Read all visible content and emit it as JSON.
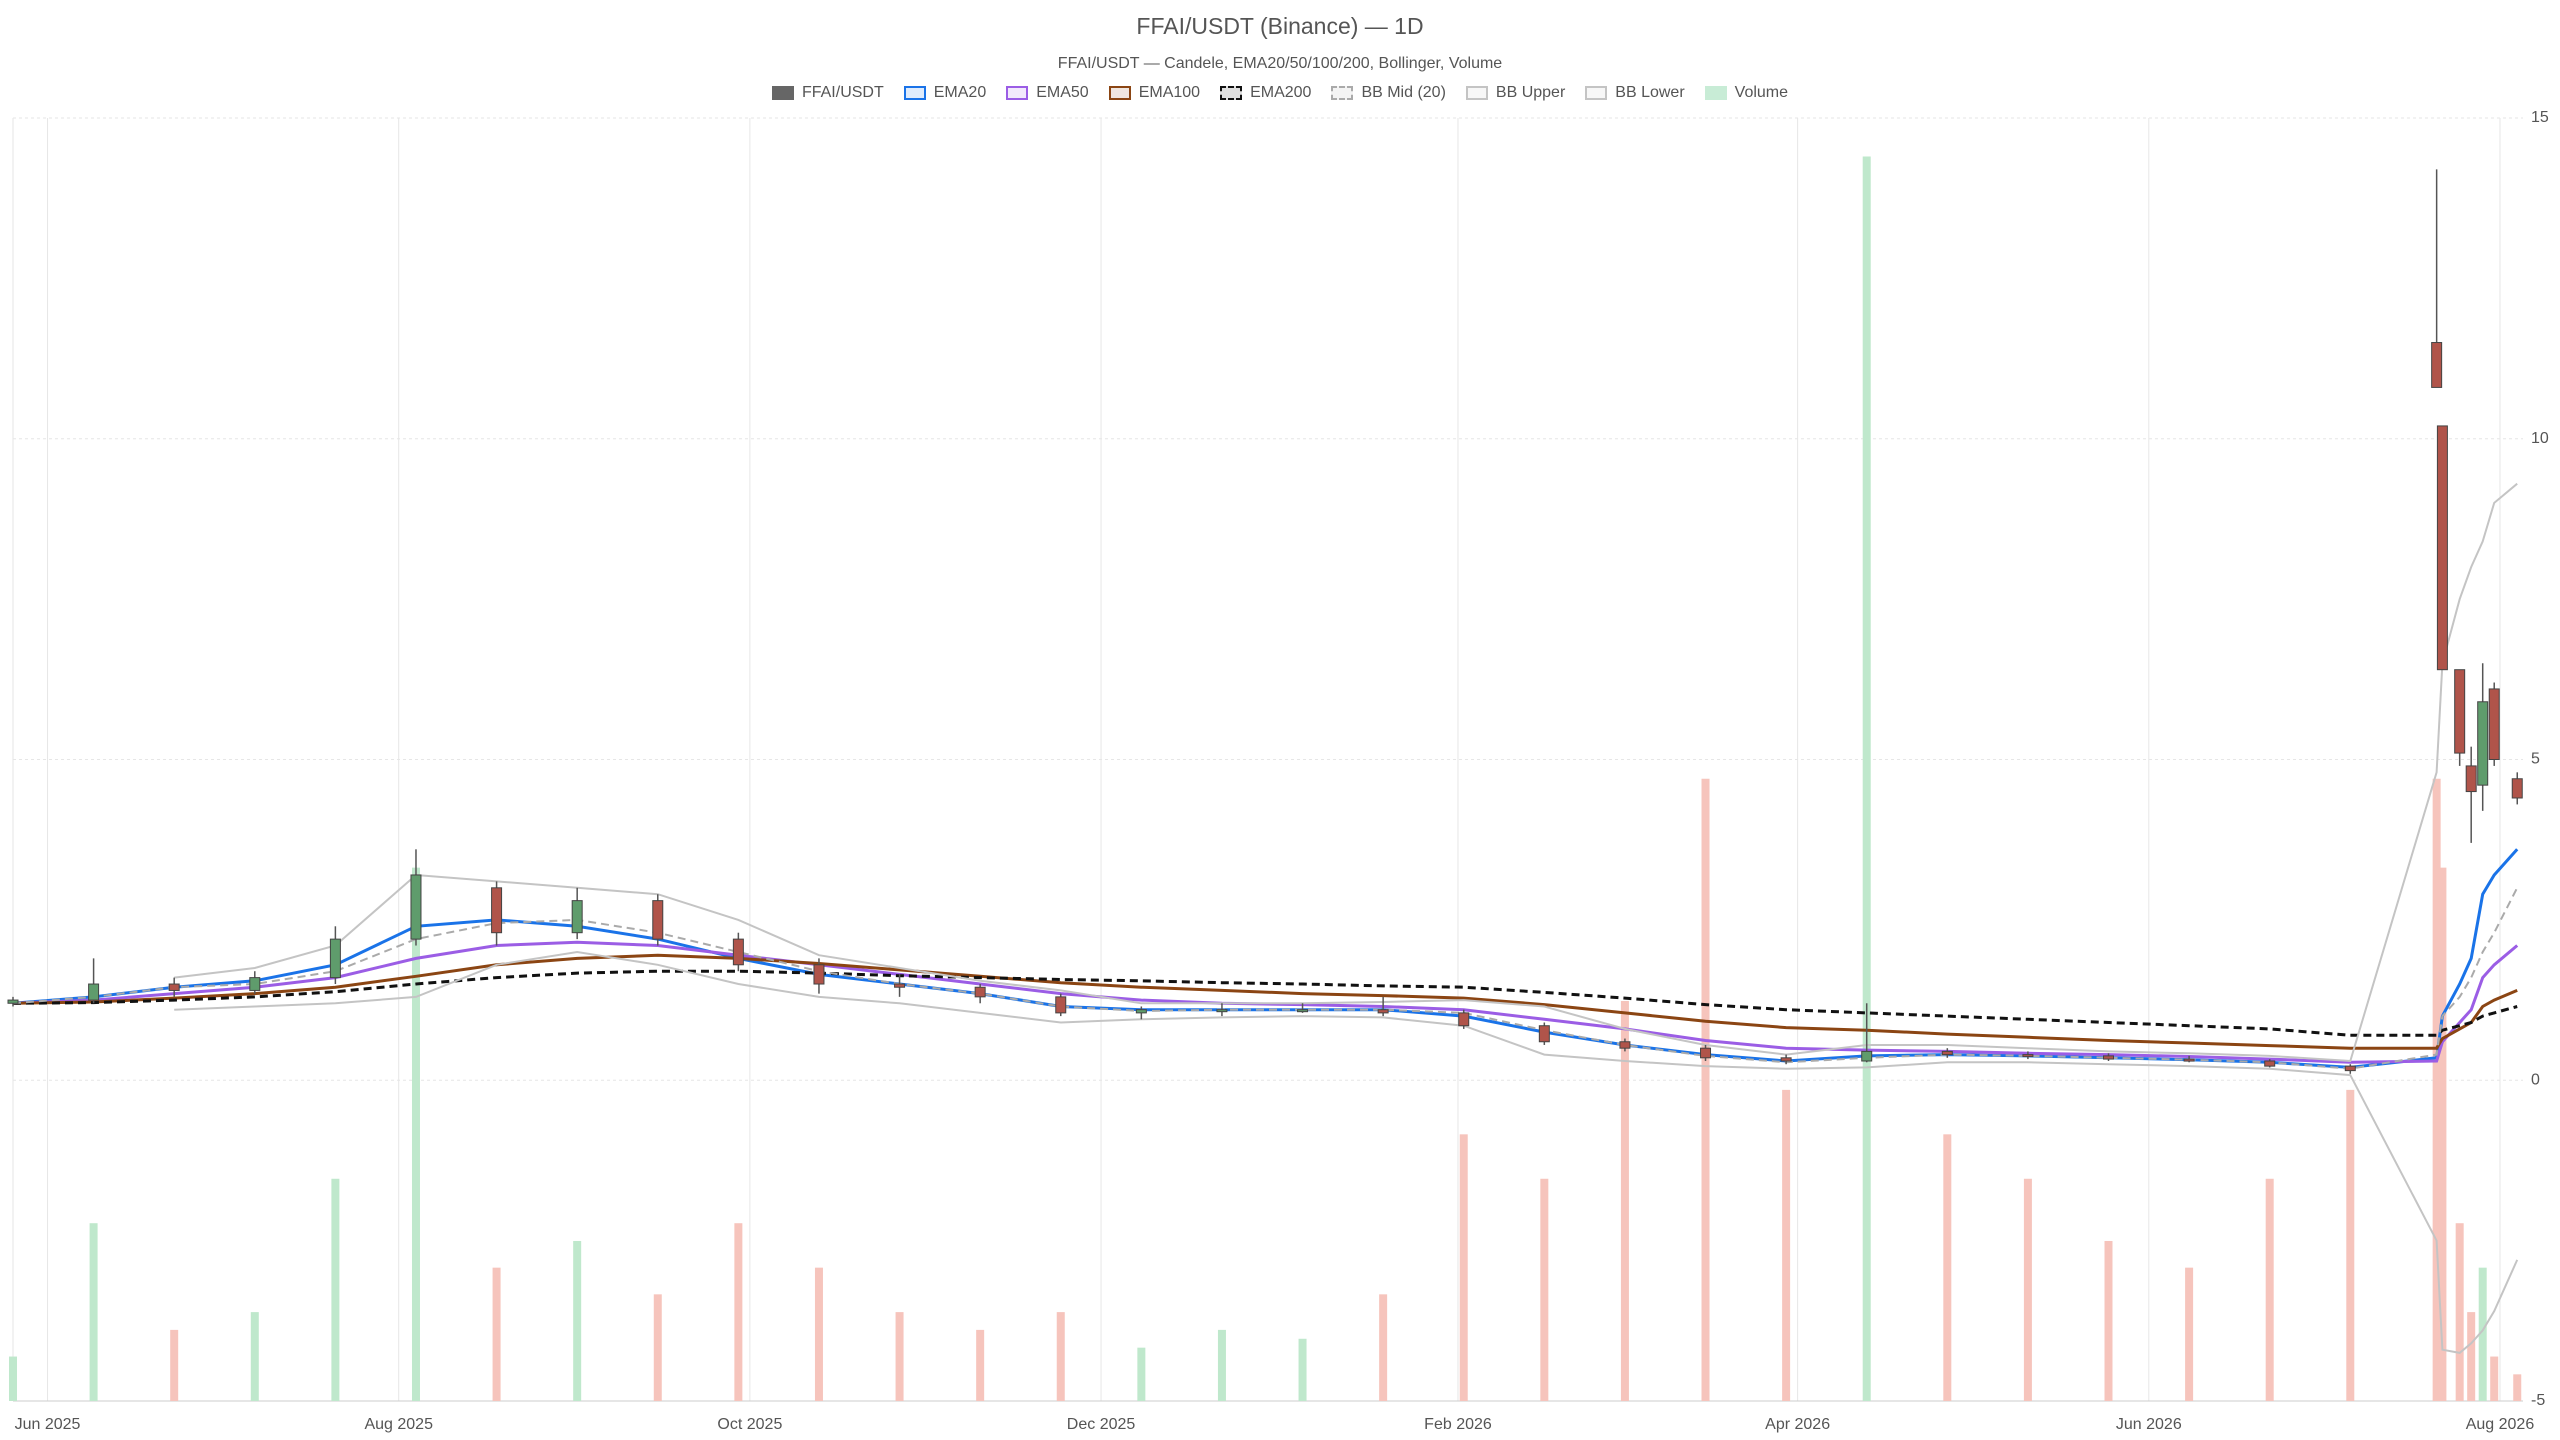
{
  "chart_data": {
    "type": "candlestick",
    "title": "FFAI/USDT (Binance) — 1D",
    "subtitle": "FFAI/USDT — Candele, EMA20/50/100/200, Bollinger, Volume",
    "x": [
      "2025-05-26",
      "2025-06-09",
      "2025-06-23",
      "2025-07-07",
      "2025-07-21",
      "2025-08-04",
      "2025-08-18",
      "2025-09-01",
      "2025-09-15",
      "2025-09-29",
      "2025-10-13",
      "2025-10-27",
      "2025-11-10",
      "2025-11-24",
      "2025-12-08",
      "2025-12-22",
      "2026-01-05",
      "2026-01-19",
      "2026-02-02",
      "2026-02-16",
      "2026-03-02",
      "2026-03-16",
      "2026-03-30",
      "2026-04-13",
      "2026-04-27",
      "2026-05-11",
      "2026-05-25",
      "2026-06-08",
      "2026-06-22",
      "2026-07-06",
      "2026-07-21",
      "2026-07-22",
      "2026-07-25",
      "2026-07-27",
      "2026-07-29",
      "2026-07-31",
      "2026-08-04"
    ],
    "candles": {
      "name": "FFAI/USDT",
      "color": "#666666",
      "up_color": "#5f9c6c",
      "down_color": "#b0544a",
      "open": [
        1.2,
        1.25,
        1.5,
        1.4,
        1.6,
        2.2,
        3.0,
        2.3,
        2.8,
        2.2,
        1.8,
        1.5,
        1.45,
        1.3,
        1.05,
        1.1,
        1.1,
        1.1,
        1.05,
        0.85,
        0.6,
        0.5,
        0.35,
        0.3,
        0.45,
        0.4,
        0.38,
        0.33,
        0.3,
        0.22,
        11.5,
        10.2,
        6.4,
        4.9,
        4.6,
        6.1,
        4.7
      ],
      "high": [
        1.3,
        1.9,
        1.6,
        1.7,
        2.4,
        3.6,
        3.1,
        3.0,
        2.9,
        2.3,
        1.9,
        1.65,
        1.5,
        1.35,
        1.15,
        1.2,
        1.2,
        1.3,
        1.1,
        0.9,
        0.65,
        0.55,
        0.4,
        1.2,
        0.5,
        0.45,
        0.42,
        0.38,
        0.33,
        0.25,
        14.2,
        10.2,
        6.4,
        5.2,
        6.5,
        6.2,
        4.8
      ],
      "low": [
        1.15,
        1.2,
        1.3,
        1.35,
        1.5,
        2.1,
        2.1,
        2.2,
        2.1,
        1.7,
        1.35,
        1.3,
        1.2,
        1.0,
        0.95,
        1.0,
        1.05,
        1.0,
        0.8,
        0.55,
        0.45,
        0.3,
        0.25,
        0.28,
        0.35,
        0.33,
        0.3,
        0.28,
        0.2,
        0.1,
        10.8,
        6.4,
        4.9,
        3.7,
        4.2,
        4.9,
        4.3
      ],
      "close": [
        1.25,
        1.5,
        1.4,
        1.6,
        2.2,
        3.2,
        2.3,
        2.8,
        2.2,
        1.8,
        1.5,
        1.45,
        1.3,
        1.05,
        1.1,
        1.1,
        1.1,
        1.05,
        0.85,
        0.6,
        0.5,
        0.35,
        0.3,
        0.45,
        0.4,
        0.38,
        0.33,
        0.3,
        0.22,
        0.15,
        10.8,
        6.4,
        5.1,
        4.5,
        5.9,
        5.0,
        4.4
      ]
    },
    "lines": [
      {
        "name": "EMA20",
        "color": "#1a73e8",
        "dash": false,
        "values": [
          1.2,
          1.3,
          1.45,
          1.55,
          1.8,
          2.4,
          2.5,
          2.4,
          2.2,
          1.9,
          1.65,
          1.5,
          1.35,
          1.15,
          1.1,
          1.1,
          1.1,
          1.1,
          1.0,
          0.75,
          0.55,
          0.4,
          0.3,
          0.38,
          0.4,
          0.38,
          0.35,
          0.32,
          0.28,
          0.2,
          0.35,
          1.0,
          1.5,
          1.9,
          2.9,
          3.2,
          3.6
        ]
      },
      {
        "name": "EMA50",
        "color": "#9b5de5",
        "dash": false,
        "values": [
          1.2,
          1.25,
          1.35,
          1.45,
          1.6,
          1.9,
          2.1,
          2.15,
          2.1,
          1.95,
          1.8,
          1.65,
          1.5,
          1.35,
          1.25,
          1.2,
          1.18,
          1.15,
          1.1,
          0.95,
          0.8,
          0.62,
          0.5,
          0.47,
          0.45,
          0.42,
          0.4,
          0.37,
          0.33,
          0.28,
          0.3,
          0.6,
          0.9,
          1.1,
          1.6,
          1.8,
          2.1
        ]
      },
      {
        "name": "EMA100",
        "color": "#8b4513",
        "dash": false,
        "values": [
          1.2,
          1.22,
          1.28,
          1.35,
          1.45,
          1.62,
          1.8,
          1.9,
          1.95,
          1.9,
          1.82,
          1.72,
          1.62,
          1.52,
          1.45,
          1.4,
          1.35,
          1.32,
          1.28,
          1.18,
          1.05,
          0.92,
          0.82,
          0.78,
          0.72,
          0.67,
          0.62,
          0.58,
          0.54,
          0.5,
          0.5,
          0.65,
          0.8,
          0.9,
          1.15,
          1.25,
          1.4
        ]
      },
      {
        "name": "EMA200",
        "color": "#111111",
        "dash": true,
        "values": [
          1.2,
          1.21,
          1.25,
          1.3,
          1.38,
          1.5,
          1.6,
          1.67,
          1.7,
          1.7,
          1.67,
          1.63,
          1.6,
          1.57,
          1.55,
          1.52,
          1.5,
          1.47,
          1.45,
          1.37,
          1.28,
          1.18,
          1.1,
          1.05,
          1.0,
          0.95,
          0.9,
          0.85,
          0.8,
          0.7,
          0.7,
          0.78,
          0.85,
          0.9,
          1.0,
          1.05,
          1.15
        ]
      },
      {
        "name": "BB Mid (20)",
        "color": "#aaaaaa",
        "dash": true,
        "values": [
          1.2,
          1.3,
          1.45,
          1.5,
          1.7,
          2.2,
          2.45,
          2.5,
          2.3,
          2.0,
          1.7,
          1.5,
          1.35,
          1.15,
          1.08,
          1.1,
          1.1,
          1.1,
          1.05,
          0.78,
          0.55,
          0.38,
          0.28,
          0.35,
          0.4,
          0.38,
          0.35,
          0.32,
          0.28,
          0.18,
          0.4,
          1.0,
          1.3,
          1.6,
          2.0,
          2.3,
          3.0
        ]
      },
      {
        "name": "BB Upper",
        "color": "#c4c4c4",
        "dash": false,
        "values": [
          null,
          null,
          1.6,
          1.75,
          2.1,
          3.2,
          3.1,
          3.0,
          2.9,
          2.5,
          1.95,
          1.75,
          1.55,
          1.4,
          1.2,
          1.2,
          1.2,
          1.22,
          1.25,
          1.15,
          0.8,
          0.55,
          0.4,
          0.55,
          0.55,
          0.5,
          0.45,
          0.42,
          0.38,
          0.3,
          4.8,
          6.5,
          7.5,
          8.0,
          8.4,
          9.0,
          9.3
        ]
      },
      {
        "name": "BB Lower",
        "color": "#c4c4c4",
        "dash": false,
        "values": [
          null,
          null,
          1.1,
          1.15,
          1.2,
          1.3,
          1.8,
          2.0,
          1.8,
          1.5,
          1.3,
          1.2,
          1.05,
          0.9,
          0.95,
          0.98,
          1.0,
          0.98,
          0.85,
          0.4,
          0.3,
          0.22,
          0.18,
          0.2,
          0.28,
          0.28,
          0.25,
          0.22,
          0.18,
          0.08,
          -2.5,
          -4.2,
          -4.25,
          -4.1,
          -3.9,
          -3.6,
          -2.8
        ]
      }
    ],
    "volume": {
      "name": "Volume",
      "color": "#c8ecd6",
      "up_color": "#bfe8cc",
      "down_color": "#f6c4bc",
      "values": [
        5,
        20,
        8,
        10,
        25,
        60,
        15,
        18,
        12,
        20,
        15,
        10,
        8,
        10,
        6,
        8,
        7,
        12,
        30,
        25,
        45,
        70,
        35,
        140,
        30,
        25,
        18,
        15,
        25,
        35,
        70,
        60,
        20,
        10,
        15,
        5,
        3
      ]
    },
    "xlim": [
      "2025-05-26",
      "2026-08-05"
    ],
    "xticks": [
      {
        "value": "2025-06-01",
        "label": "Jun 2025"
      },
      {
        "value": "2025-08-01",
        "label": "Aug 2025"
      },
      {
        "value": "2025-10-01",
        "label": "Oct 2025"
      },
      {
        "value": "2025-12-01",
        "label": "Dec 2025"
      },
      {
        "value": "2026-02-01",
        "label": "Feb 2026"
      },
      {
        "value": "2026-04-01",
        "label": "Apr 2026"
      },
      {
        "value": "2026-06-01",
        "label": "Jun 2026"
      },
      {
        "value": "2026-08-01",
        "label": "Aug 2026"
      }
    ],
    "ylim": [
      -5,
      15
    ],
    "yticks": [
      -5,
      0,
      5,
      10,
      15
    ],
    "grid": true
  }
}
